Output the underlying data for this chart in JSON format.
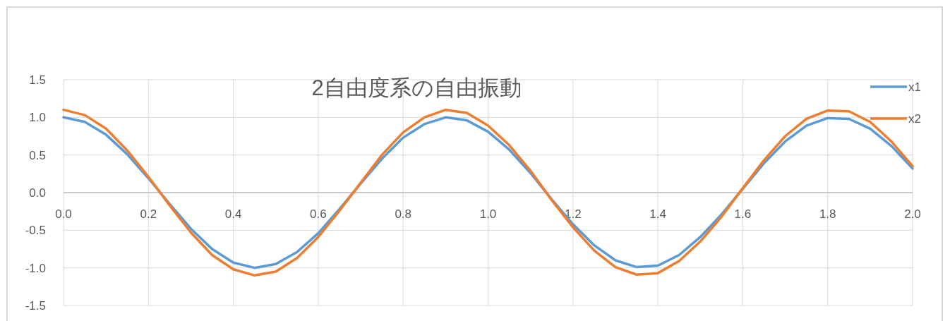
{
  "chart_data": {
    "type": "line",
    "title": "2自由度系の自由振動",
    "x": [
      0,
      0.05,
      0.1,
      0.15,
      0.2,
      0.25,
      0.3,
      0.35,
      0.4,
      0.45,
      0.5,
      0.55,
      0.6,
      0.65,
      0.7,
      0.75,
      0.8,
      0.85,
      0.9,
      0.95,
      1.0,
      1.05,
      1.1,
      1.15,
      1.2,
      1.25,
      1.3,
      1.35,
      1.4,
      1.45,
      1.5,
      1.55,
      1.6,
      1.65,
      1.7,
      1.75,
      1.8,
      1.85,
      1.9,
      1.95,
      2.0
    ],
    "series": [
      {
        "name": "x1",
        "color": "#5b9bd5",
        "values": [
          1.0,
          0.94,
          0.77,
          0.51,
          0.19,
          -0.15,
          -0.48,
          -0.75,
          -0.93,
          -1.0,
          -0.95,
          -0.79,
          -0.54,
          -0.22,
          0.12,
          0.45,
          0.73,
          0.91,
          1.0,
          0.96,
          0.81,
          0.57,
          0.26,
          -0.09,
          -0.42,
          -0.7,
          -0.9,
          -0.99,
          -0.97,
          -0.83,
          -0.59,
          -0.29,
          0.05,
          0.39,
          0.68,
          0.89,
          0.99,
          0.98,
          0.85,
          0.62,
          0.32
        ]
      },
      {
        "name": "x2",
        "color": "#ed7d31",
        "values": [
          1.1,
          1.03,
          0.85,
          0.56,
          0.21,
          -0.17,
          -0.53,
          -0.83,
          -1.02,
          -1.1,
          -1.05,
          -0.87,
          -0.59,
          -0.24,
          0.13,
          0.5,
          0.8,
          1.0,
          1.1,
          1.06,
          0.89,
          0.63,
          0.29,
          -0.1,
          -0.46,
          -0.77,
          -0.99,
          -1.09,
          -1.07,
          -0.91,
          -0.65,
          -0.32,
          0.06,
          0.43,
          0.75,
          0.98,
          1.09,
          1.08,
          0.94,
          0.68,
          0.35
        ]
      }
    ],
    "xlim": [
      0,
      2.0
    ],
    "xticks": [
      {
        "value": 0,
        "label": "0.0"
      },
      0.2,
      0.4,
      0.6,
      0.8,
      {
        "value": 1.0,
        "label": "1.0"
      },
      1.2,
      1.4,
      1.6,
      1.8,
      {
        "value": 2.0,
        "label": "2.0"
      }
    ],
    "ylim": [
      -1.5,
      1.5
    ],
    "yticks": [
      -1.5,
      {
        "value": -1.0,
        "label": "-1.0"
      },
      -0.5,
      {
        "value": 0,
        "label": "0.0"
      },
      0.5,
      {
        "value": 1.0,
        "label": "1.0"
      },
      1.5
    ],
    "grid": true,
    "legend": "top right",
    "line_style": "solid",
    "marker": "none"
  }
}
